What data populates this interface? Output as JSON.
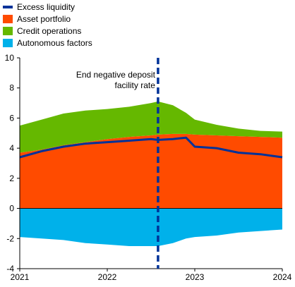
{
  "chart_data": {
    "type": "area",
    "xlabel": "",
    "ylabel": "",
    "xlim": [
      2021.0,
      2024.0
    ],
    "ylim": [
      -4,
      10
    ],
    "yticks": [
      -4,
      -2,
      0,
      2,
      4,
      6,
      8,
      10
    ],
    "xticks": [
      {
        "value": 2021,
        "label": "2021"
      },
      {
        "value": 2022,
        "label": "2022"
      },
      {
        "value": 2023,
        "label": "2023"
      },
      {
        "value": 2024,
        "label": "2024"
      }
    ],
    "grid": false,
    "legend_position": "top-left",
    "x": [
      2021.0,
      2021.25,
      2021.5,
      2021.75,
      2022.0,
      2022.25,
      2022.5,
      2022.58,
      2022.75,
      2022.9,
      2023.0,
      2023.25,
      2023.5,
      2023.75,
      2024.0
    ],
    "series": [
      {
        "name": "Asset portfolio",
        "kind": "area",
        "color": "#ff4b00",
        "values": [
          3.7,
          3.9,
          4.2,
          4.4,
          4.6,
          4.75,
          4.85,
          4.9,
          4.95,
          4.95,
          4.9,
          4.85,
          4.8,
          4.75,
          4.7
        ]
      },
      {
        "name": "Credit operations",
        "kind": "area",
        "color": "#65b800",
        "values": [
          1.8,
          2.0,
          2.1,
          2.1,
          2.0,
          2.0,
          2.15,
          2.2,
          1.9,
          1.4,
          1.0,
          0.7,
          0.5,
          0.4,
          0.4
        ]
      },
      {
        "name": "Autonomous factors",
        "kind": "area",
        "color": "#00b1ea",
        "values": [
          -1.9,
          -2.0,
          -2.1,
          -2.3,
          -2.4,
          -2.5,
          -2.5,
          -2.5,
          -2.3,
          -2.0,
          -1.9,
          -1.8,
          -1.6,
          -1.5,
          -1.4
        ]
      },
      {
        "name": "Excess liquidity",
        "kind": "line",
        "color": "#003299",
        "values": [
          3.4,
          3.8,
          4.1,
          4.3,
          4.4,
          4.5,
          4.6,
          4.55,
          4.6,
          4.7,
          4.1,
          4.0,
          3.7,
          3.6,
          3.4
        ]
      }
    ],
    "annotation": {
      "x": 2022.58,
      "line1": "End negative deposit",
      "line2": "facility rate",
      "line_color": "#003299"
    }
  }
}
